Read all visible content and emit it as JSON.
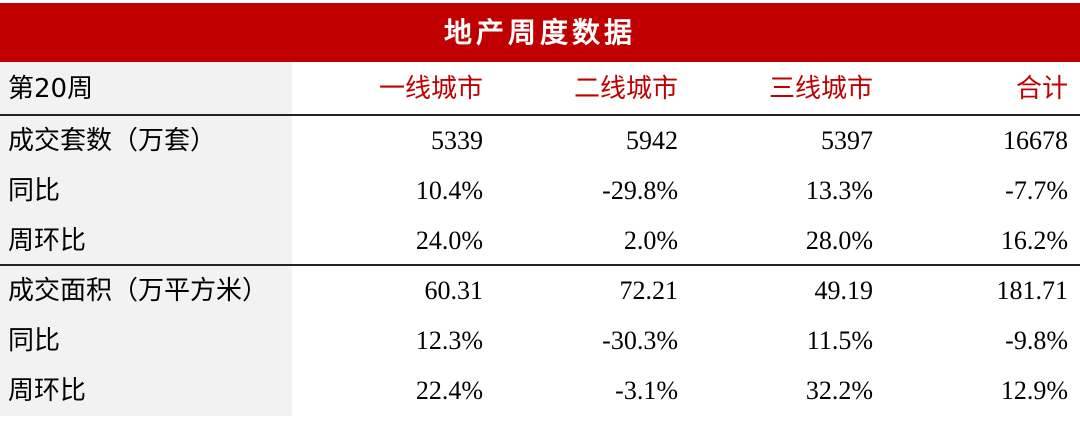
{
  "table": {
    "title": "地产周度数据",
    "header": [
      "第20周",
      "一线城市",
      "二线城市",
      "三线城市",
      "合计"
    ],
    "rows": [
      [
        "成交套数（万套）",
        "5339",
        "5942",
        "5397",
        "16678"
      ],
      [
        "同比",
        "10.4%",
        "-29.8%",
        "13.3%",
        "-7.7%"
      ],
      [
        "周环比",
        "24.0%",
        "2.0%",
        "28.0%",
        "16.2%"
      ],
      [
        "成交面积（万平方米）",
        "60.31",
        "72.21",
        "49.19",
        "181.71"
      ],
      [
        "同比",
        "12.3%",
        "-30.3%",
        "11.5%",
        "-9.8%"
      ],
      [
        "周环比",
        "22.4%",
        "-3.1%",
        "32.2%",
        "12.9%"
      ]
    ]
  }
}
